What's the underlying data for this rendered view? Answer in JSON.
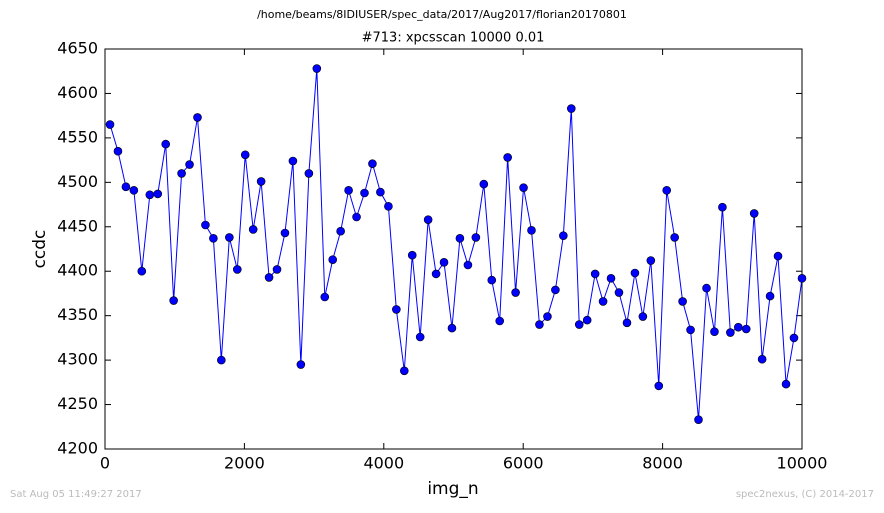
{
  "chart_data": {
    "type": "line",
    "suptitle": "/home/beams/8IDIUSER/spec_data/2017/Aug2017/florian20170801",
    "title": "#713: xpcsscan 10000 0.01",
    "x_label": "img_n",
    "y_label": "ccdc",
    "timestamp": "Sat Aug 05 11:49:27 2017",
    "credit": "spec2nexus, (C) 2014-2017",
    "xlim": [
      0,
      10000
    ],
    "xticks": [
      0,
      2000,
      4000,
      6000,
      8000,
      10000
    ],
    "ylim": [
      4200,
      4650
    ],
    "yticks": [
      4200,
      4250,
      4300,
      4350,
      4400,
      4450,
      4500,
      4550,
      4600,
      4650
    ],
    "x": [
      72,
      186,
      300,
      414,
      528,
      643,
      757,
      871,
      985,
      1099,
      1213,
      1327,
      1441,
      1555,
      1669,
      1784,
      1898,
      2012,
      2126,
      2240,
      2354,
      2468,
      2582,
      2696,
      2810,
      2925,
      3039,
      3153,
      3267,
      3381,
      3495,
      3609,
      3723,
      3837,
      3951,
      4066,
      4180,
      4294,
      4408,
      4522,
      4636,
      4750,
      4864,
      4978,
      5092,
      5207,
      5321,
      5435,
      5549,
      5663,
      5777,
      5891,
      6005,
      6119,
      6233,
      6348,
      6462,
      6576,
      6690,
      6804,
      6918,
      7032,
      7146,
      7260,
      7374,
      7489,
      7603,
      7717,
      7831,
      7945,
      8059,
      8173,
      8287,
      8401,
      8515,
      8630,
      8744,
      8858,
      8972,
      9086,
      9200,
      9314,
      9428,
      9542,
      9656,
      9771,
      9885,
      10000
    ],
    "series": [
      {
        "color": "#0000ff",
        "values": [
          4565,
          4535,
          4495,
          4491,
          4400,
          4486,
          4487,
          4543,
          4367,
          4510,
          4520,
          4573,
          4452,
          4437,
          4300,
          4438,
          4402,
          4531,
          4447,
          4501,
          4393,
          4402,
          4443,
          4524,
          4295,
          4510,
          4628,
          4371,
          4413,
          4445,
          4491,
          4461,
          4488,
          4521,
          4489,
          4473,
          4357,
          4288,
          4418,
          4326,
          4458,
          4397,
          4410,
          4336,
          4437,
          4407,
          4438,
          4498,
          4390,
          4344,
          4528,
          4376,
          4494,
          4446,
          4340,
          4349,
          4379,
          4440,
          4583,
          4340,
          4345,
          4397,
          4366,
          4392,
          4376,
          4342,
          4398,
          4349,
          4412,
          4271,
          4491,
          4438,
          4366,
          4334,
          4233,
          4381,
          4332,
          4472,
          4331,
          4337,
          4335,
          4465,
          4301,
          4372,
          4417,
          4273,
          4325,
          4392
        ]
      }
    ]
  }
}
